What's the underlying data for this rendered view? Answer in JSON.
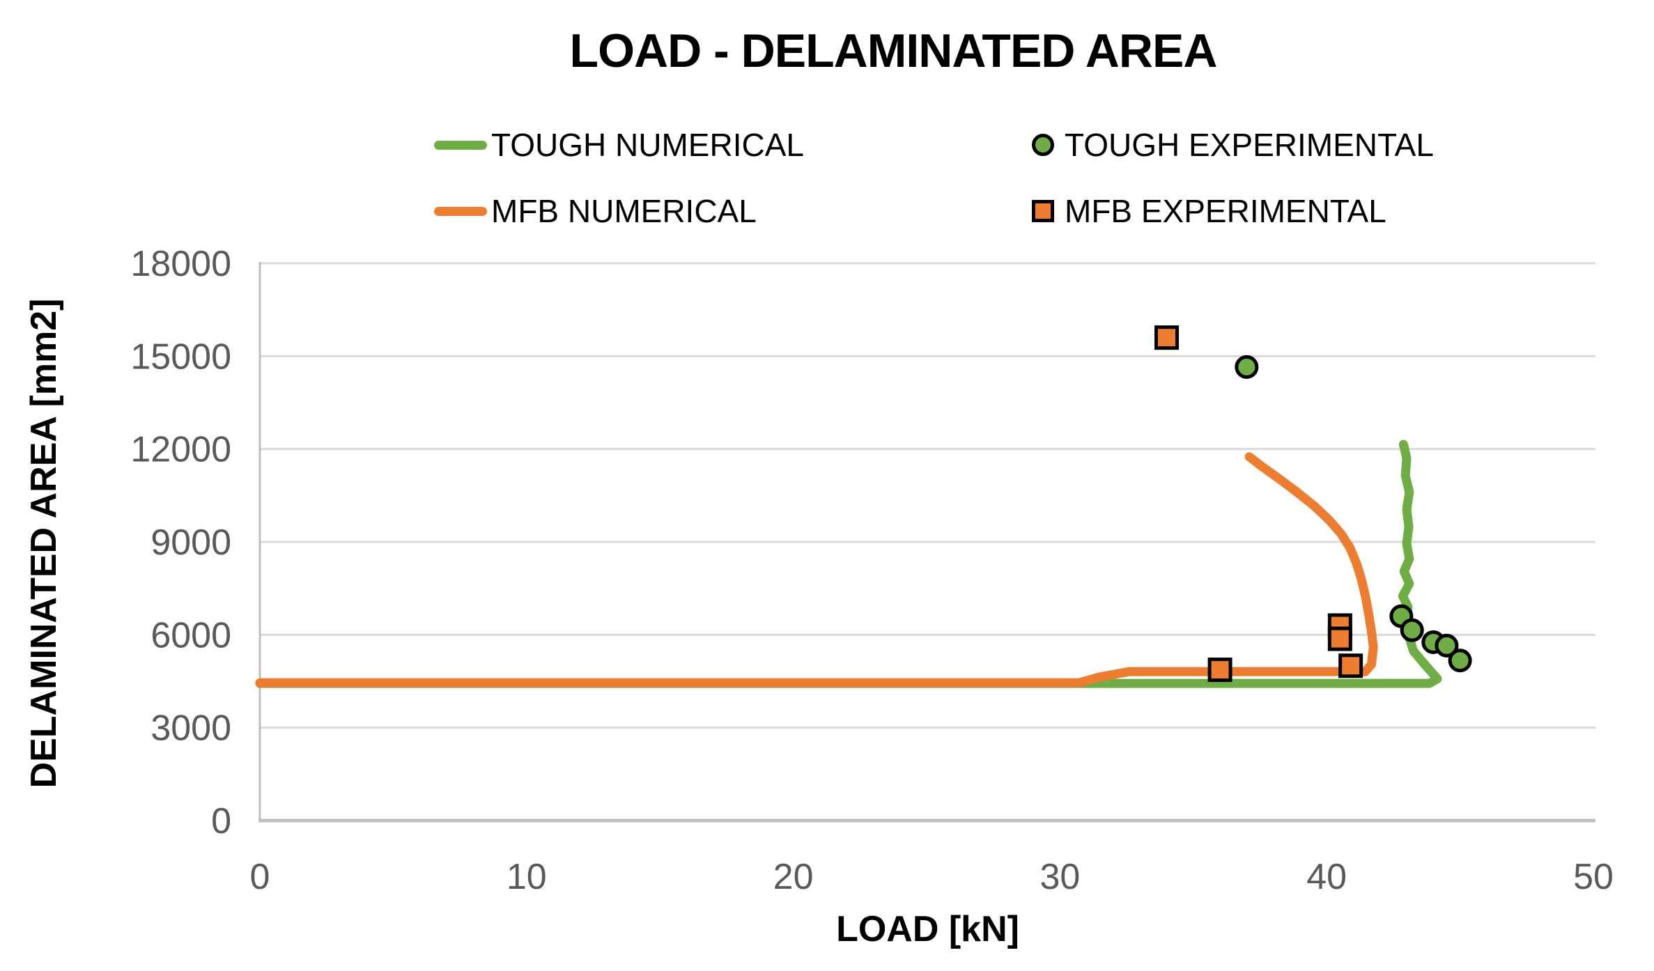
{
  "title": "LOAD - DELAMINATED AREA",
  "legend": {
    "entries": [
      {
        "label": "TOUGH NUMERICAL",
        "marker": "line",
        "color": "#70AD47"
      },
      {
        "label": "TOUGH EXPERIMENTAL",
        "marker": "circle",
        "color": "#70AD47"
      },
      {
        "label": "MFB NUMERICAL",
        "marker": "line",
        "color": "#ED7D31"
      },
      {
        "label": "MFB EXPERIMENTAL",
        "marker": "square",
        "color": "#ED7D31"
      }
    ]
  },
  "colors": {
    "tough_green": "#70AD47",
    "mfb_orange": "#ED7D31",
    "gridline": "#D9D9D9",
    "axis_line": "#BFBFBF",
    "tick_text": "#595959",
    "marker_outline": "#000000"
  },
  "chart_data": {
    "type": "line",
    "title": "LOAD - DELAMINATED AREA",
    "xlabel": "LOAD [kN]",
    "ylabel": "DELAMINATED AREA [mm2]",
    "xlim": [
      0,
      50
    ],
    "ylim": [
      0,
      18000
    ],
    "x_ticks": [
      0,
      10,
      20,
      30,
      40,
      50
    ],
    "y_ticks": [
      0,
      3000,
      6000,
      9000,
      12000,
      15000,
      18000
    ],
    "grid": "horizontal",
    "legend_position": "top",
    "series": [
      {
        "name": "TOUGH NUMERICAL",
        "type": "line",
        "color": "#70AD47",
        "points": [
          [
            0,
            4430
          ],
          [
            30.8,
            4430
          ],
          [
            43.85,
            4430
          ],
          [
            44.15,
            4580
          ],
          [
            43.6,
            5120
          ],
          [
            43.25,
            5480
          ],
          [
            43.1,
            5900
          ],
          [
            43.0,
            6400
          ],
          [
            43.05,
            6900
          ],
          [
            42.85,
            7250
          ],
          [
            43.1,
            7650
          ],
          [
            42.9,
            8050
          ],
          [
            43.1,
            8450
          ],
          [
            43.0,
            8950
          ],
          [
            43.08,
            9500
          ],
          [
            43.0,
            10050
          ],
          [
            43.1,
            10600
          ],
          [
            42.95,
            11150
          ],
          [
            43.0,
            11700
          ],
          [
            42.88,
            12150
          ]
        ]
      },
      {
        "name": "MFB NUMERICAL",
        "type": "line",
        "color": "#ED7D31",
        "points": [
          [
            0,
            4450
          ],
          [
            30.7,
            4450
          ],
          [
            31.5,
            4640
          ],
          [
            32.6,
            4810
          ],
          [
            41.45,
            4810
          ],
          [
            41.68,
            5050
          ],
          [
            41.75,
            5600
          ],
          [
            41.68,
            6100
          ],
          [
            41.58,
            6650
          ],
          [
            41.45,
            7250
          ],
          [
            41.3,
            7800
          ],
          [
            41.12,
            8300
          ],
          [
            40.88,
            8800
          ],
          [
            40.55,
            9250
          ],
          [
            40.1,
            9700
          ],
          [
            39.55,
            10150
          ],
          [
            38.9,
            10600
          ],
          [
            38.2,
            11050
          ],
          [
            37.55,
            11450
          ],
          [
            37.1,
            11750
          ]
        ]
      },
      {
        "name": "TOUGH EXPERIMENTAL",
        "type": "scatter",
        "marker": "circle",
        "color": "#70AD47",
        "points": [
          [
            37.0,
            14650
          ],
          [
            42.8,
            6600
          ],
          [
            43.2,
            6150
          ],
          [
            44.0,
            5760
          ],
          [
            44.5,
            5650
          ],
          [
            45.0,
            5170
          ]
        ]
      },
      {
        "name": "MFB EXPERIMENTAL",
        "type": "scatter",
        "marker": "square",
        "color": "#ED7D31",
        "points": [
          [
            34.0,
            15600
          ],
          [
            36.0,
            4870
          ],
          [
            40.5,
            6300
          ],
          [
            40.5,
            5870
          ],
          [
            40.9,
            5000
          ]
        ]
      }
    ]
  }
}
